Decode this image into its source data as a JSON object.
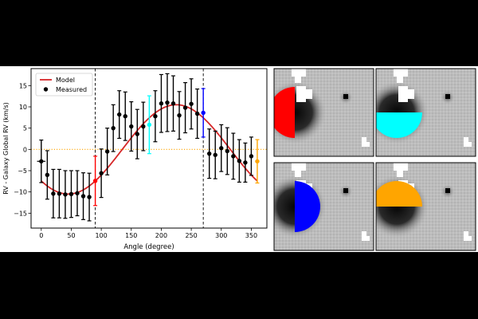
{
  "chart_data": {
    "type": "scatter",
    "xlabel": "Angle (degree)",
    "ylabel": "RV - Galaxy Global RV (km/s)",
    "xlim": [
      -17,
      376
    ],
    "ylim": [
      -18.5,
      19
    ],
    "xticks": [
      0,
      50,
      100,
      150,
      200,
      250,
      300,
      350
    ],
    "yticks": [
      -15,
      -10,
      -5,
      0,
      5,
      10,
      15
    ],
    "grid": false,
    "legend": {
      "placement": "top-left",
      "entries": [
        "Model",
        "Measured"
      ]
    },
    "reference_lines": {
      "vertical_dashed": [
        90,
        270
      ],
      "horizontal_dotted": 0
    },
    "model": {
      "name": "Model",
      "color": "#d62728",
      "amplitude": 10.5,
      "phase_deg": 225,
      "offset": 0,
      "x": [
        0,
        15,
        30,
        45,
        60,
        75,
        90,
        105,
        120,
        135,
        150,
        165,
        180,
        195,
        210,
        225,
        240,
        255,
        270,
        285,
        300,
        315,
        330,
        345,
        360
      ],
      "y": [
        -7.4,
        -9.1,
        -10.1,
        -10.5,
        -10.1,
        -9.1,
        -7.4,
        -5.3,
        -2.7,
        0.0,
        2.7,
        5.3,
        7.4,
        9.1,
        10.1,
        10.5,
        10.1,
        9.1,
        7.4,
        5.3,
        2.7,
        0.0,
        -2.7,
        -5.3,
        -7.4
      ]
    },
    "series": [
      {
        "name": "Measured",
        "color": "#000000",
        "x": [
          0,
          10,
          20,
          30,
          40,
          50,
          60,
          70,
          80,
          100,
          110,
          120,
          130,
          140,
          150,
          160,
          170,
          190,
          200,
          210,
          220,
          230,
          240,
          250,
          260,
          280,
          290,
          300,
          310,
          320,
          330,
          340,
          350
        ],
        "y": [
          -2.8,
          -6.0,
          -10.4,
          -10.4,
          -10.6,
          -10.5,
          -10.3,
          -11.0,
          -11.2,
          -5.6,
          -0.5,
          5.0,
          8.2,
          7.8,
          5.4,
          3.6,
          5.4,
          7.8,
          10.8,
          11.0,
          10.8,
          8.0,
          9.8,
          10.7,
          8.4,
          -1.0,
          -1.3,
          0.3,
          -0.4,
          -1.6,
          -2.7,
          -3.1,
          -1.6
        ],
        "yerr": [
          5.0,
          5.7,
          5.7,
          5.7,
          5.6,
          5.5,
          5.3,
          5.5,
          5.6,
          5.7,
          5.5,
          5.5,
          5.6,
          5.7,
          5.8,
          5.8,
          5.7,
          6.0,
          6.8,
          6.8,
          6.5,
          5.6,
          5.9,
          5.9,
          5.8,
          5.8,
          5.6,
          5.5,
          5.5,
          5.4,
          5.0,
          4.6,
          4.5
        ],
        "xerr_first": 7
      },
      {
        "name": "",
        "color": "#ff0000",
        "x": [
          90
        ],
        "y": [
          -7.4
        ],
        "yerr": [
          5.8
        ]
      },
      {
        "name": "",
        "color": "#00ffff",
        "x": [
          180
        ],
        "y": [
          5.8
        ],
        "yerr": [
          6.8
        ]
      },
      {
        "name": "",
        "color": "#0000ff",
        "x": [
          270
        ],
        "y": [
          8.6
        ],
        "yerr": [
          5.7
        ]
      },
      {
        "name": "",
        "color": "#ffa500",
        "x": [
          360
        ],
        "y": [
          -2.8
        ],
        "yerr": [
          5.1
        ]
      }
    ],
    "reference_color": "#ffa500"
  },
  "thumbnails": [
    {
      "wedge": "left",
      "color": "#ff0000"
    },
    {
      "wedge": "bottom",
      "color": "#00ffff"
    },
    {
      "wedge": "right",
      "color": "#0000ff"
    },
    {
      "wedge": "top",
      "color": "#ffa500"
    }
  ]
}
